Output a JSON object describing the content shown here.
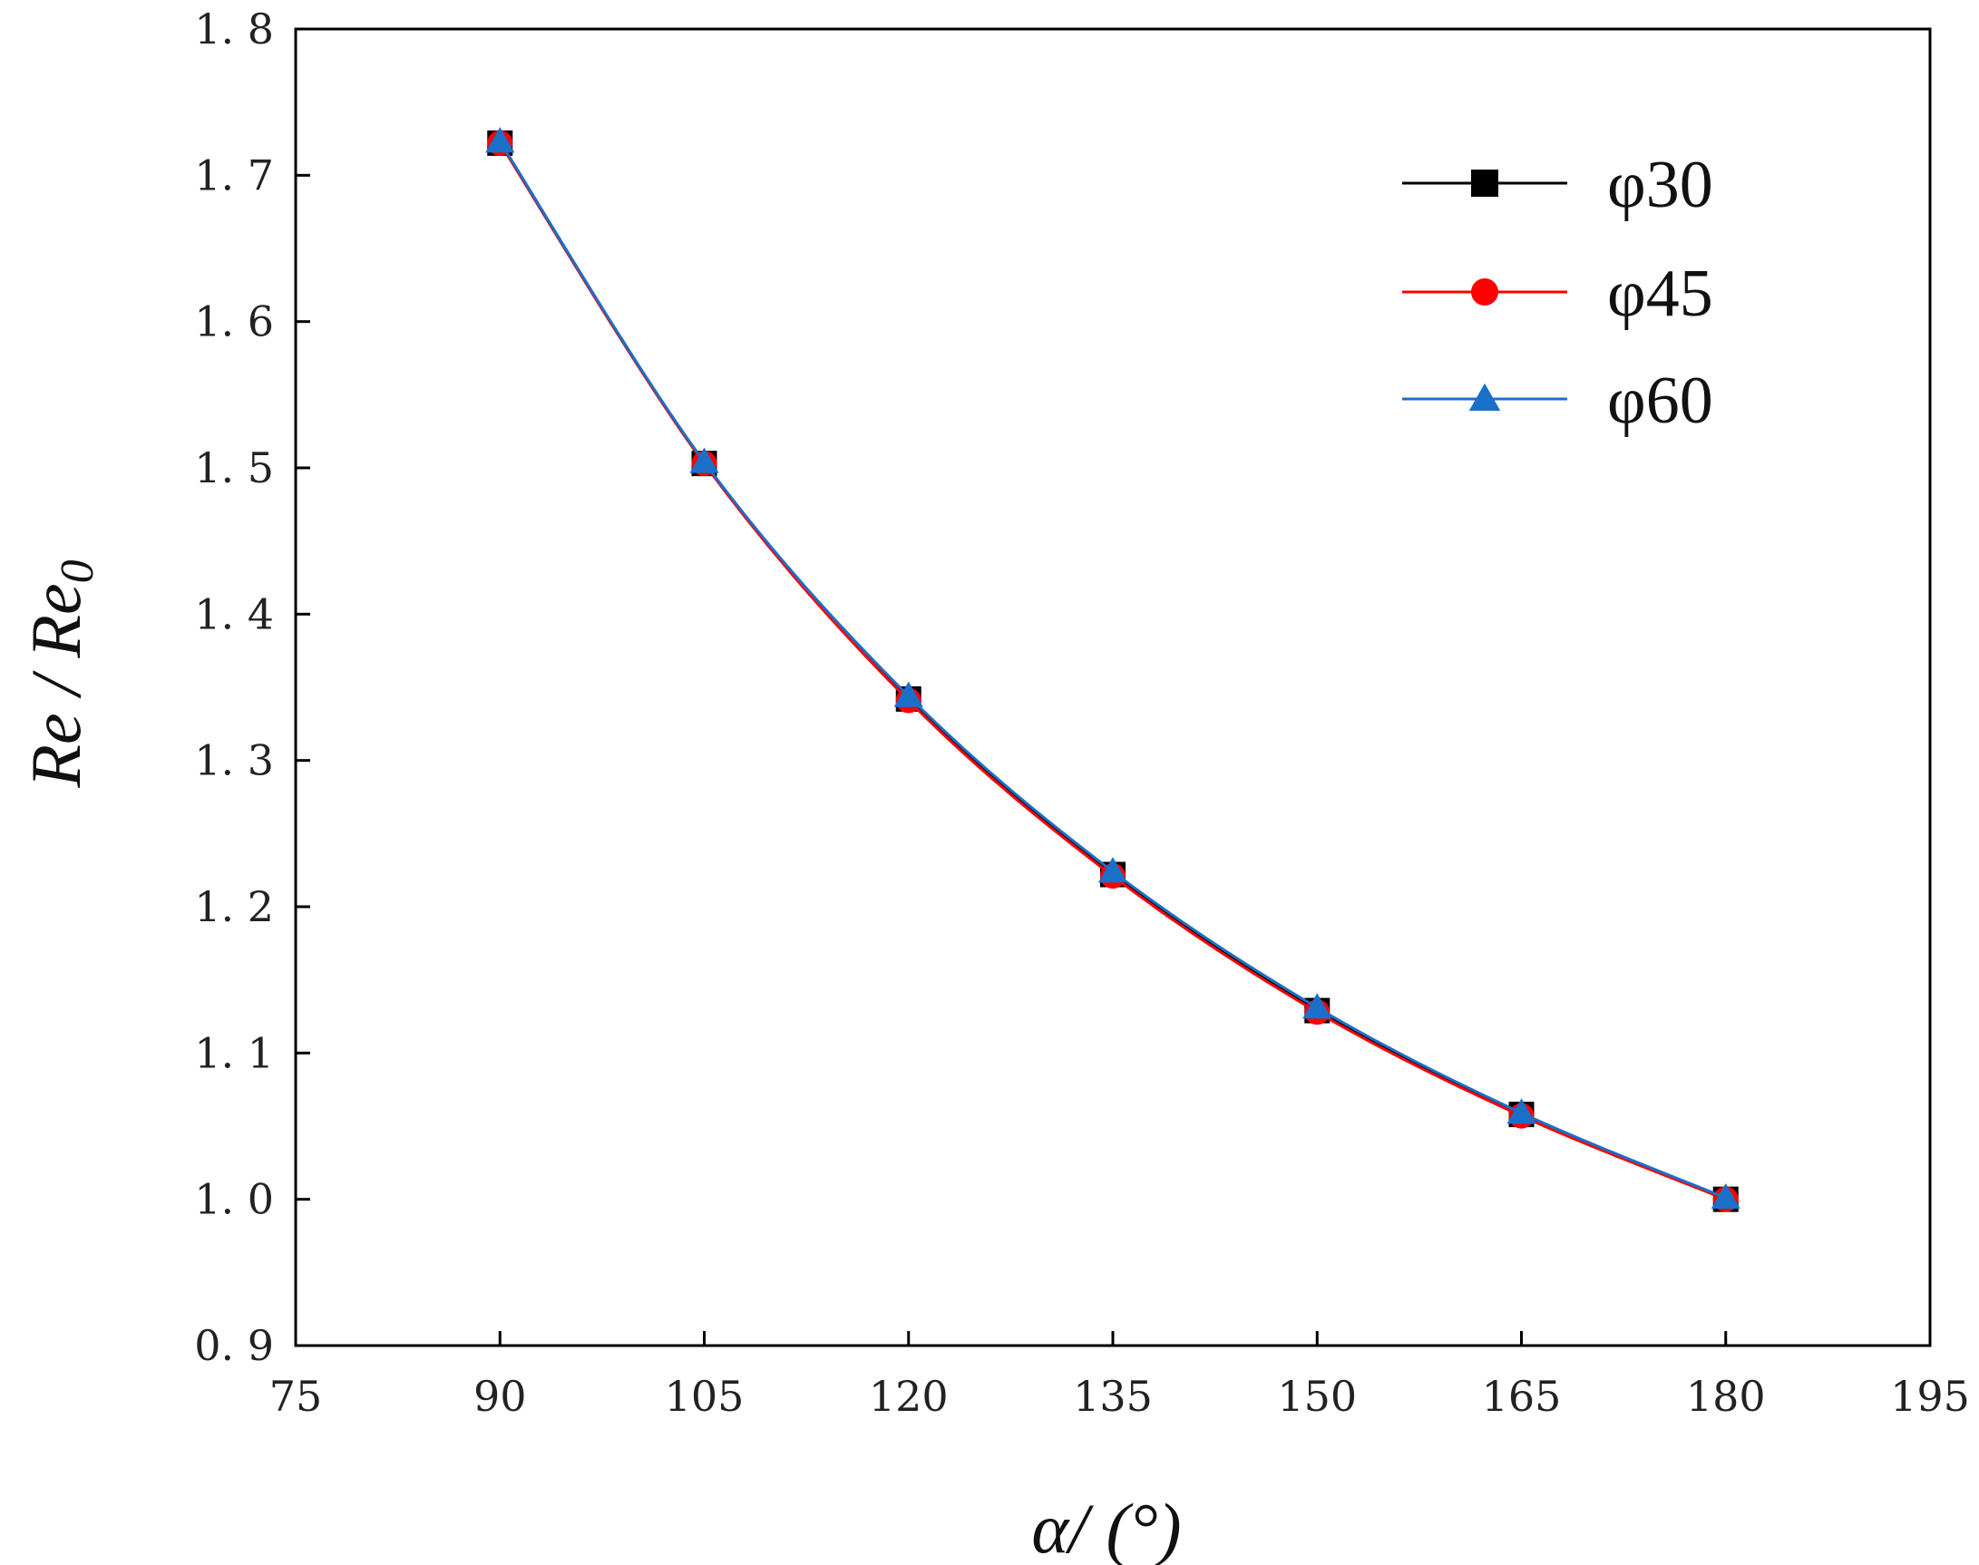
{
  "chart_data": {
    "type": "line",
    "xlabel": "α/ (°)",
    "ylabel": "Re / Re",
    "ylabel_subscript": "0",
    "xlim": [
      75,
      195
    ],
    "ylim": [
      0.9,
      1.8
    ],
    "x_ticks": [
      "75",
      "90",
      "105",
      "120",
      "135",
      "150",
      "165",
      "180",
      "195"
    ],
    "y_ticks": [
      "0. 9",
      "1. 0",
      "1. 1",
      "1. 2",
      "1. 3",
      "1. 4",
      "1. 5",
      "1. 6",
      "1. 7",
      "1. 8"
    ],
    "x_tick_values": [
      75,
      90,
      105,
      120,
      135,
      150,
      165,
      180,
      195
    ],
    "y_tick_values": [
      0.9,
      1.0,
      1.1,
      1.2,
      1.3,
      1.4,
      1.5,
      1.6,
      1.7,
      1.8
    ],
    "x": [
      90,
      105,
      120,
      135,
      150,
      165,
      180
    ],
    "series": [
      {
        "name": "φ30",
        "marker": "square",
        "color": "#000000",
        "values": [
          1.722,
          1.503,
          1.342,
          1.222,
          1.129,
          1.058,
          1.0
        ]
      },
      {
        "name": "φ45",
        "marker": "circle",
        "color": "#ff0000",
        "values": [
          1.722,
          1.503,
          1.341,
          1.221,
          1.128,
          1.057,
          1.0
        ]
      },
      {
        "name": "φ60",
        "marker": "triangle",
        "color": "#1a6fc9",
        "values": [
          1.723,
          1.504,
          1.344,
          1.224,
          1.131,
          1.059,
          1.001
        ]
      }
    ],
    "grid": false,
    "legend_position": "top-right"
  }
}
